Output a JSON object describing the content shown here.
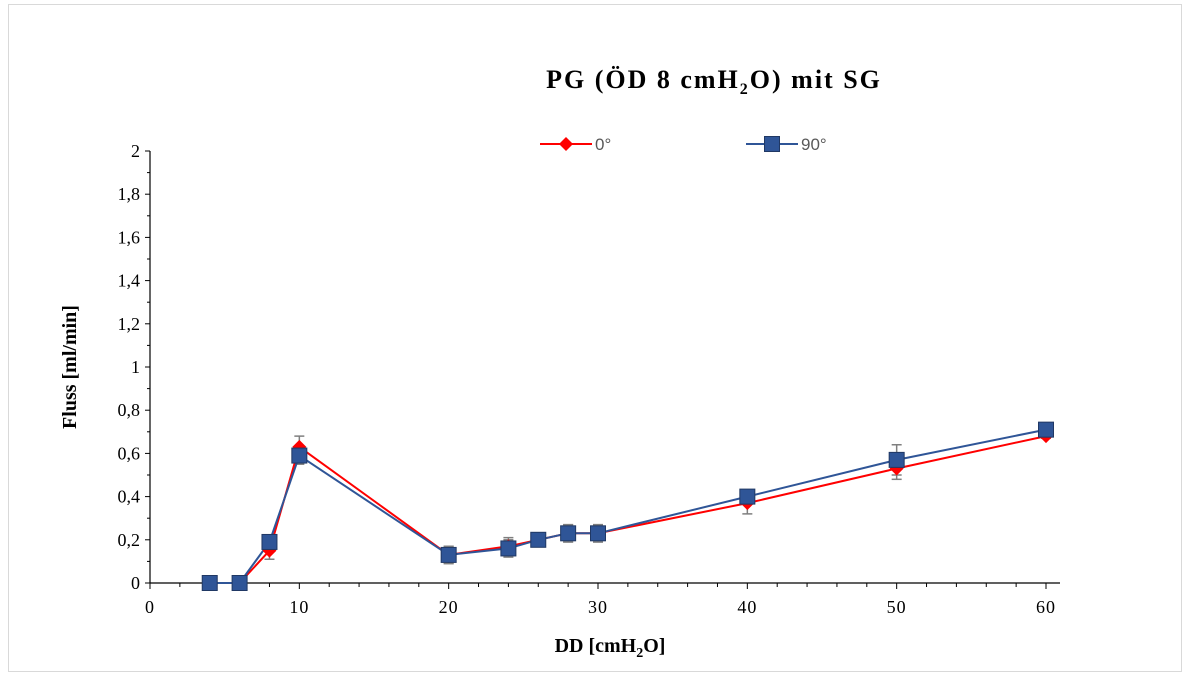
{
  "chart_data": {
    "type": "line",
    "title": "PG (ÖD 8 cmH2O) mit SG",
    "title_parts": {
      "pre": "PG (ÖD 8 cmH",
      "sub": "2",
      "post": "O) mit SG"
    },
    "xlabel": "DD [cmH2O]",
    "xlabel_parts": {
      "pre": "DD [cmH",
      "sub": "2",
      "post": "O]"
    },
    "ylabel": "Fluss [ml/min]",
    "xlim": [
      0,
      60
    ],
    "ylim": [
      0,
      2
    ],
    "x_ticks": [
      "0",
      "10",
      "20",
      "30",
      "40",
      "50",
      "60"
    ],
    "y_ticks": [
      "0",
      "0,2",
      "0,4",
      "0,6",
      "0,8",
      "1",
      "1,2",
      "1,4",
      "1,6",
      "1,8",
      "2"
    ],
    "grid": false,
    "legend_position": "top",
    "x": [
      4,
      6,
      8,
      10,
      20,
      24,
      26,
      28,
      30,
      40,
      50,
      60
    ],
    "series": [
      {
        "name": "0°",
        "color": "#ff0000",
        "marker": "diamond",
        "values": [
          0,
          0,
          0.15,
          0.63,
          0.13,
          0.17,
          0.2,
          0.23,
          0.23,
          0.37,
          0.53,
          0.68
        ],
        "errors": [
          0,
          0,
          0.04,
          0.05,
          0.04,
          0.04,
          0.02,
          0.04,
          0.04,
          0.05,
          0.05,
          0.01
        ]
      },
      {
        "name": "90°",
        "color": "#2f5597",
        "marker": "square",
        "values": [
          0,
          0,
          0.19,
          0.59,
          0.13,
          0.16,
          0.2,
          0.23,
          0.23,
          0.4,
          0.57,
          0.71
        ],
        "errors": [
          0,
          0,
          0.02,
          0.04,
          0.04,
          0.04,
          0.02,
          0.04,
          0.04,
          0.02,
          0.07,
          0.01
        ]
      }
    ]
  }
}
